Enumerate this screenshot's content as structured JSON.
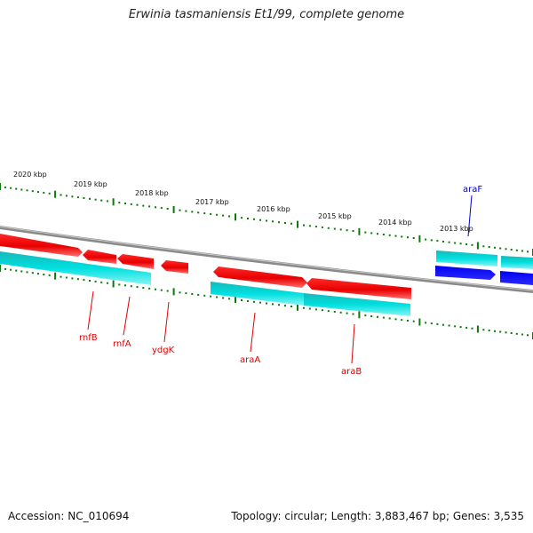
{
  "title": "Erwinia tasmaniensis Et1/99, complete genome",
  "footer": {
    "accession": "Accession: NC_010694",
    "topology": "Topology: circular; Length: 3,883,467 bp; Genes: 3,535"
  },
  "scale": {
    "ticks": [
      "2020 kbp",
      "2019 kbp",
      "2018 kbp",
      "2017 kbp",
      "2016 kbp",
      "2015 kbp",
      "2014 kbp",
      "2013 kbp"
    ]
  },
  "genes": [
    {
      "name": "rnfB",
      "color": "#e00000"
    },
    {
      "name": "rnfA",
      "color": "#e00000"
    },
    {
      "name": "ydgK",
      "color": "#e00000"
    },
    {
      "name": "araA",
      "color": "#e00000"
    },
    {
      "name": "araB",
      "color": "#e00000"
    },
    {
      "name": "araF",
      "color": "#0000cc"
    }
  ],
  "colors": {
    "forward_feature": "#ff0000",
    "reverse_feature": "#0000ff",
    "cds_track": "#00d8d8",
    "backbone": "#8a8a8a",
    "scale_dots": "#0a7a0a"
  }
}
